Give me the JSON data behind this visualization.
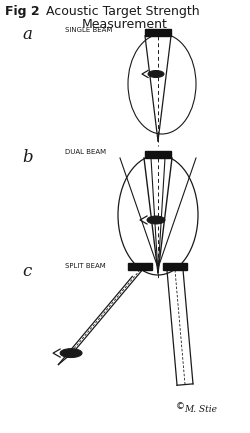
{
  "title_bold": "Fig 2",
  "title_rest": "  Acoustic Target Strength",
  "title_line2": "Measurement",
  "label_a": "a",
  "label_b": "b",
  "label_c": "c",
  "text_a": "SINGLE BEAM",
  "text_b": "DUAL BEAM",
  "text_c": "SPLIT BEAM",
  "bg_color": "#ffffff",
  "line_color": "#1a1a1a",
  "rect_color": "#111111",
  "signature": "M. Stie",
  "copyright": "©"
}
